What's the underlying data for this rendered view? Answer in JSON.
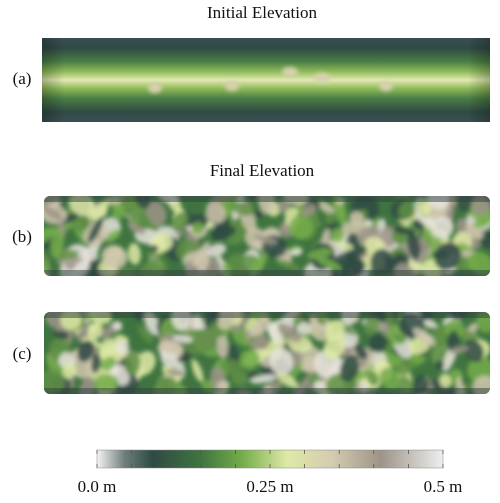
{
  "header": {
    "title_initial": "Initial Elevation",
    "title_final": "Final Elevation"
  },
  "panels": [
    {
      "label": "(a)"
    },
    {
      "label": "(b)"
    },
    {
      "label": "(c)"
    }
  ],
  "colorbar": {
    "tick_labels": [
      "0.0 m",
      "0.25 m",
      "0.5 m"
    ]
  }
}
